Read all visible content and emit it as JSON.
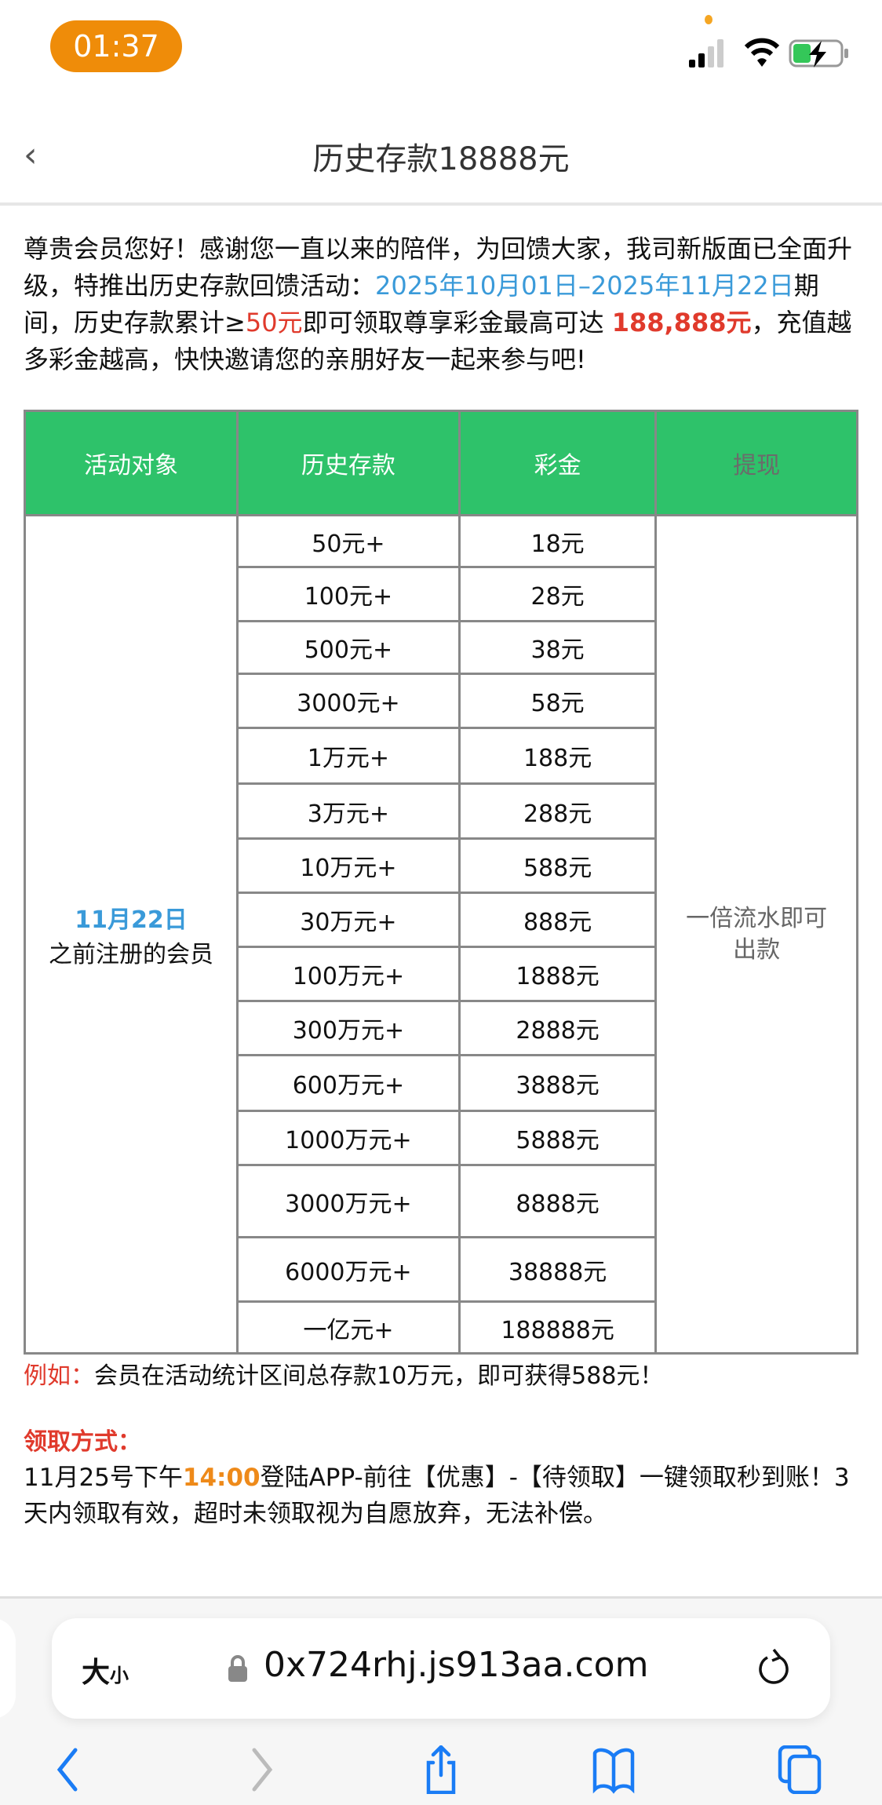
{
  "status": {
    "time": "01:37"
  },
  "header": {
    "back": "‹",
    "title": "历史存款18888元"
  },
  "intro": {
    "p1": "尊贵会员您好！感谢您一直以来的陪伴，为回馈大家，我司新版面已全面升级，特推出历史存款回馈活动：",
    "date_range": "2025年10月01日–2025年11月22日",
    "p2": "期间，历史存款累计≥",
    "min": "50元",
    "p3": "即可领取尊享彩金最高可达 ",
    "max": "188,888元",
    "p4": "，充值越多彩金越高，快快邀请您的亲朋好友一起来参与吧!"
  },
  "table": {
    "headers": [
      "活动对象",
      "历史存款",
      "彩金",
      "提现"
    ],
    "target_date": "11月22日",
    "target_text": "之前注册的会员",
    "withdraw": "一倍流水即可出款",
    "rows": [
      [
        "50元+",
        "18元"
      ],
      [
        "100元+",
        "28元"
      ],
      [
        "500元+",
        "38元"
      ],
      [
        "3000元+",
        "58元"
      ],
      [
        "1万元+",
        "188元"
      ],
      [
        "3万元+",
        "288元"
      ],
      [
        "10万元+",
        "588元"
      ],
      [
        "30万元+",
        "888元"
      ],
      [
        "100万元+",
        "1888元"
      ],
      [
        "300万元+",
        "2888元"
      ],
      [
        "600万元+",
        "3888元"
      ],
      [
        "1000万元+",
        "5888元"
      ],
      [
        "3000万元+",
        "8888元"
      ],
      [
        "6000万元+",
        "38888元"
      ],
      [
        "一亿元+",
        "188888元"
      ]
    ]
  },
  "example": {
    "label": "例如：",
    "text": "会员在活动统计区间总存款10万元，即可获得588元！"
  },
  "method": {
    "label": "领取方式："
  },
  "instructions": {
    "a": "11月25号下午",
    "time": "14:00",
    "b": "登陆APP-前往【优惠】-【待领取】一键领取秒到账！3天内领取有效，超时未领取视为自愿放弃，无法补偿。"
  },
  "browser": {
    "text_size": "大",
    "text_size_small": "小",
    "url": "0x724rhj.js913aa.com"
  },
  "colors": {
    "accent": "#2ec26a",
    "blue": "#3a9ad9",
    "red": "#e03a2c",
    "orange": "#ee8a1a"
  }
}
